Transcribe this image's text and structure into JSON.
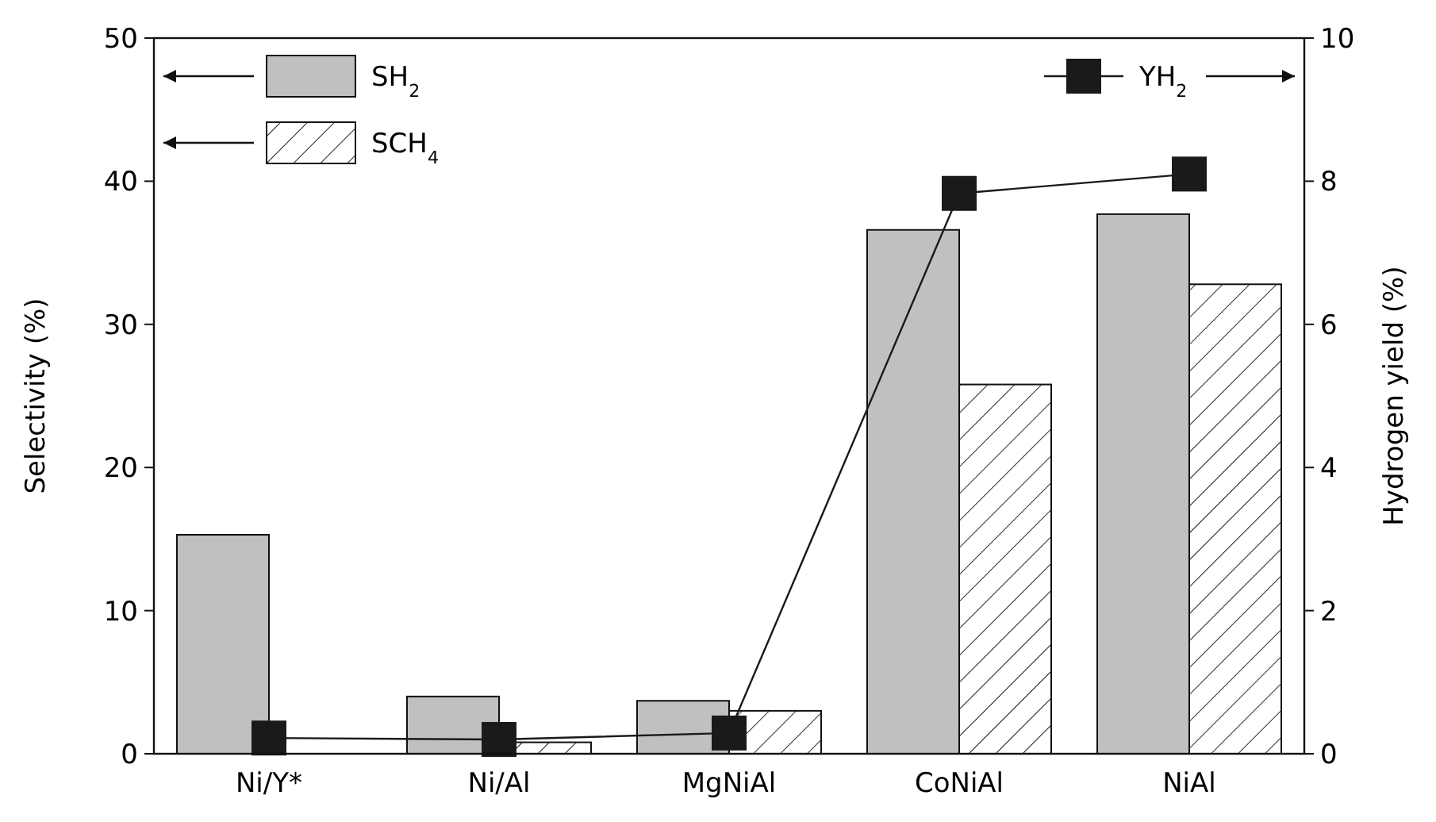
{
  "chart_data": {
    "type": "bar",
    "ylabel": "Selectivity (%)",
    "y2label": "Hydrogen yield (%)",
    "categories": [
      "Ni/Y*",
      "Ni/Al",
      "MgNiAl",
      "CoNiAl",
      "NiAl"
    ],
    "series": [
      {
        "name": "SH$_{2}$",
        "color": "#c0c0c0",
        "values": [
          15.3,
          4.0,
          3.7,
          36.6,
          37.7
        ]
      },
      {
        "name": "SCH$_{4}$",
        "color": "#ffffff",
        "values": [
          0,
          0.8,
          3.0,
          25.8,
          32.8
        ]
      },
      {
        "name": "YH$_{2}$",
        "type": "line",
        "axis": "y2",
        "color": "#1a1a1a",
        "marker": "square",
        "values": [
          0.22,
          0.2,
          0.29,
          7.83,
          8.1
        ]
      }
    ],
    "ylim": [
      0,
      50
    ],
    "yticks": [
      0,
      10,
      20,
      30,
      40,
      50
    ],
    "y2lim": [
      0,
      10
    ],
    "y2ticks": [
      0,
      2,
      4,
      6,
      8,
      10
    ],
    "legend": "top",
    "grid": false
  }
}
